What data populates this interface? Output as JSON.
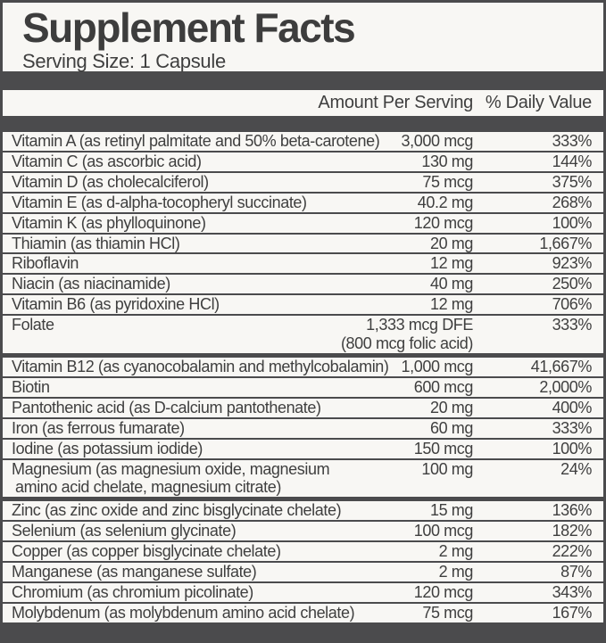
{
  "label": {
    "title": "Supplement Facts",
    "serving_size": "Serving Size: 1 Capsule",
    "columns": {
      "amount": "Amount Per Serving",
      "daily_value": "% Daily Value"
    },
    "colors": {
      "frame": "#4b4b4d",
      "paper": "#f8f7f4",
      "text": "#3f3f3f"
    },
    "rows": [
      {
        "name": "Vitamin A (as retinyl palmitate and 50% beta-carotene)",
        "amount": "3,000 mcg",
        "dv": "333%"
      },
      {
        "name": "Vitamin C (as ascorbic acid)",
        "amount": "130 mg",
        "dv": "144%"
      },
      {
        "name": "Vitamin D (as cholecalciferol)",
        "amount": "75 mcg",
        "dv": "375%"
      },
      {
        "name": "Vitamin E (as d-alpha-tocopheryl succinate)",
        "amount": "40.2 mg",
        "dv": "268%"
      },
      {
        "name": "Vitamin K (as phylloquinone)",
        "amount": "120 mcg",
        "dv": "100%"
      },
      {
        "name": "Thiamin (as thiamin HCl)",
        "amount": "20 mg",
        "dv": "1,667%"
      },
      {
        "name": "Riboflavin",
        "amount": "12 mg",
        "dv": "923%"
      },
      {
        "name": "Niacin (as niacinamide)",
        "amount": "40 mg",
        "dv": "250%"
      },
      {
        "name": "Vitamin B6 (as pyridoxine HCl)",
        "amount": "12 mg",
        "dv": "706%"
      },
      {
        "name": "Folate",
        "amount": "1,333 mcg DFE",
        "amount2": "(800 mcg folic acid)",
        "dv": "333%"
      },
      {
        "name": "Vitamin B12 (as cyanocobalamin and methylcobalamin)",
        "amount": "1,000 mcg",
        "dv": "41,667%",
        "separator": "thick"
      },
      {
        "name": "Biotin",
        "amount": "600 mcg",
        "dv": "2,000%"
      },
      {
        "name": "Pantothenic acid (as D-calcium pantothenate)",
        "amount": "20 mg",
        "dv": "400%"
      },
      {
        "name": "Iron (as ferrous fumarate)",
        "amount": "60 mg",
        "dv": "333%"
      },
      {
        "name": "Iodine (as potassium iodide)",
        "amount": "150 mcg",
        "dv": "100%"
      },
      {
        "name": "Magnesium (as magnesium oxide, magnesium",
        "name2": "amino acid chelate, magnesium citrate)",
        "amount": "100 mg",
        "dv": "24%"
      },
      {
        "name": "Zinc (as zinc oxide and zinc bisglycinate chelate)",
        "amount": "15 mg",
        "dv": "136%",
        "separator": "thick"
      },
      {
        "name": "Selenium (as selenium glycinate)",
        "amount": "100 mcg",
        "dv": "182%"
      },
      {
        "name": "Copper (as copper bisglycinate chelate)",
        "amount": "2 mg",
        "dv": "222%"
      },
      {
        "name": "Manganese (as manganese sulfate)",
        "amount": "2 mg",
        "dv": "87%"
      },
      {
        "name": "Chromium (as chromium picolinate)",
        "amount": "120 mcg",
        "dv": "343%"
      },
      {
        "name": "Molybdenum (as molybdenum amino acid chelate)",
        "amount": "75 mcg",
        "dv": "167%"
      }
    ]
  }
}
